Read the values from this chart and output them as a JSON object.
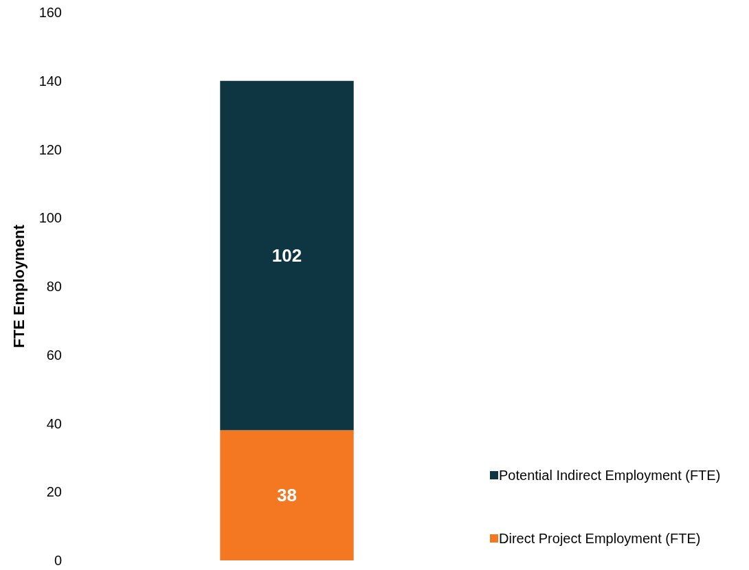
{
  "chart_data": {
    "type": "bar",
    "stacked": true,
    "categories": [
      null
    ],
    "ylabel": "FTE Employment",
    "series": [
      {
        "name": "Direct Project Employment (FTE)",
        "color": "#f47721",
        "values": [
          38
        ]
      },
      {
        "name": "Potential Indirect Employment (FTE)",
        "color": "#0d3642",
        "values": [
          102
        ]
      }
    ],
    "ylim": [
      0,
      160
    ],
    "yticks": [
      0,
      20,
      40,
      60,
      80,
      100,
      120,
      140,
      160
    ],
    "data_labels": true,
    "legend": "right",
    "grid": false
  }
}
